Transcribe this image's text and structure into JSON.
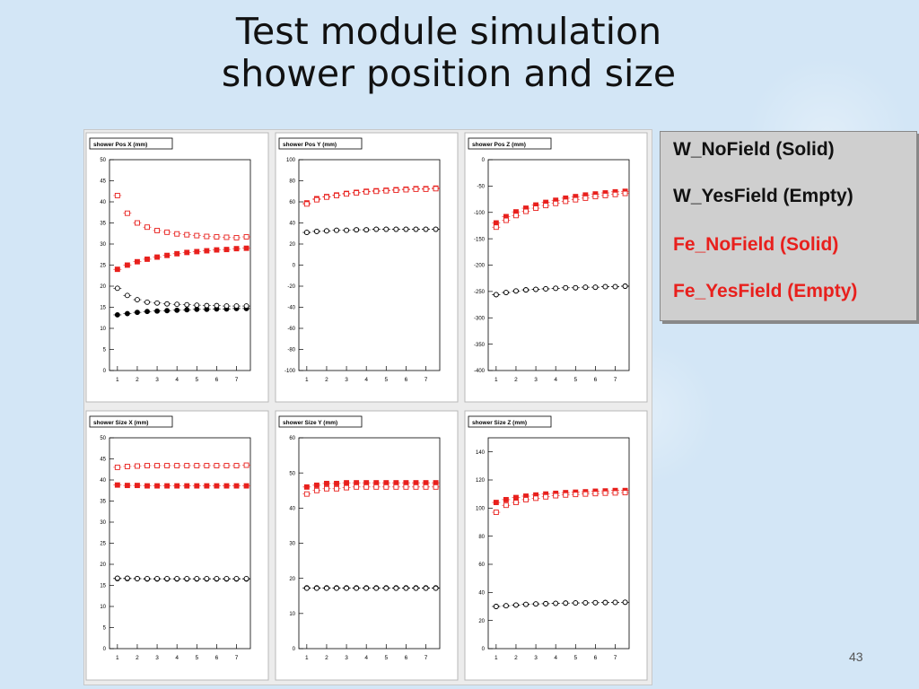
{
  "slide": {
    "title_line1": "Test module simulation",
    "title_line2": "shower position and size",
    "page_number": "43"
  },
  "legend": [
    {
      "label": "W_NoField (Solid)",
      "color": "#111111"
    },
    {
      "label": "W_YesField (Empty)",
      "color": "#111111"
    },
    {
      "label": "Fe_NoField (Solid)",
      "color": "#e8201d"
    },
    {
      "label": "Fe_YesField (Empty)",
      "color": "#e8201d"
    }
  ],
  "colors": {
    "black_series": "#000000",
    "red_series": "#e8201d"
  },
  "chart_data": [
    {
      "type": "scatter",
      "title": "shower Pos X (mm)",
      "x": [
        1,
        1.5,
        2,
        2.5,
        3,
        3.5,
        4,
        4.5,
        5,
        5.5,
        6,
        6.5,
        7,
        7.5
      ],
      "ylim": [
        0,
        50
      ],
      "yticks": [
        0,
        5,
        10,
        15,
        20,
        25,
        30,
        35,
        40,
        45,
        50
      ],
      "xticks": [
        1,
        2,
        3,
        4,
        5,
        6,
        7
      ],
      "series": [
        {
          "values": [
            13.2,
            13.5,
            13.8,
            14.0,
            14.1,
            14.2,
            14.3,
            14.4,
            14.5,
            14.5,
            14.6,
            14.6,
            14.7,
            14.7
          ]
        },
        {
          "values": [
            19.5,
            17.8,
            16.8,
            16.2,
            16.0,
            15.8,
            15.7,
            15.6,
            15.5,
            15.4,
            15.4,
            15.3,
            15.3,
            15.3
          ]
        },
        {
          "values": [
            24.0,
            25.0,
            25.8,
            26.4,
            26.9,
            27.3,
            27.7,
            28.0,
            28.2,
            28.4,
            28.6,
            28.7,
            28.9,
            29.0
          ]
        },
        {
          "values": [
            41.5,
            37.3,
            35.0,
            34.0,
            33.2,
            32.8,
            32.4,
            32.2,
            32.0,
            31.8,
            31.7,
            31.6,
            31.5,
            31.7
          ]
        }
      ]
    },
    {
      "type": "scatter",
      "title": "shower Pos Y (mm)",
      "x": [
        1,
        1.5,
        2,
        2.5,
        3,
        3.5,
        4,
        4.5,
        5,
        5.5,
        6,
        6.5,
        7,
        7.5
      ],
      "ylim": [
        -100,
        100
      ],
      "yticks": [
        -100,
        -80,
        -60,
        -40,
        -20,
        0,
        20,
        40,
        60,
        80,
        100
      ],
      "xticks": [
        1,
        2,
        3,
        4,
        5,
        6,
        7
      ],
      "series": [
        {
          "values": [
            31,
            32,
            32.5,
            33,
            33,
            33.5,
            33.5,
            34,
            34,
            34,
            34,
            34,
            34,
            34
          ]
        },
        {
          "values": [
            31,
            32,
            32.5,
            33,
            33,
            33.5,
            33.5,
            34,
            34,
            34,
            34,
            34,
            34,
            34
          ]
        },
        {
          "values": [
            59,
            63,
            65,
            66.5,
            68,
            69,
            70,
            70.5,
            71,
            71.5,
            72,
            72.5,
            72.5,
            73
          ]
        },
        {
          "values": [
            58,
            62,
            64.5,
            66,
            67.5,
            68.5,
            69.5,
            70,
            70.5,
            71,
            71.5,
            72,
            72,
            72.5
          ]
        }
      ]
    },
    {
      "type": "scatter",
      "title": "shower Pos Z (mm)",
      "x": [
        1,
        1.5,
        2,
        2.5,
        3,
        3.5,
        4,
        4.5,
        5,
        5.5,
        6,
        6.5,
        7,
        7.5
      ],
      "ylim": [
        -400,
        0
      ],
      "yticks": [
        -400,
        -350,
        -300,
        -250,
        -200,
        -150,
        -100,
        -50,
        0
      ],
      "xticks": [
        1,
        2,
        3,
        4,
        5,
        6,
        7
      ],
      "series": [
        {
          "values": [
            -256,
            -252,
            -249,
            -247,
            -246,
            -245,
            -244,
            -243,
            -243,
            -242,
            -242,
            -241,
            -241,
            -240
          ]
        },
        {
          "values": [
            -256,
            -252,
            -249,
            -247,
            -246,
            -245,
            -244,
            -243,
            -243,
            -242,
            -242,
            -241,
            -241,
            -240
          ]
        },
        {
          "values": [
            -120,
            -108,
            -99,
            -92,
            -86,
            -81,
            -77,
            -73,
            -70,
            -67,
            -65,
            -63,
            -61,
            -60
          ]
        },
        {
          "values": [
            -128,
            -115,
            -106,
            -98,
            -92,
            -87,
            -83,
            -79,
            -76,
            -73,
            -70,
            -68,
            -66,
            -64
          ]
        }
      ]
    },
    {
      "type": "scatter",
      "title": "shower Size X (mm)",
      "x": [
        1,
        1.5,
        2,
        2.5,
        3,
        3.5,
        4,
        4.5,
        5,
        5.5,
        6,
        6.5,
        7,
        7.5
      ],
      "ylim": [
        0,
        50
      ],
      "yticks": [
        0,
        5,
        10,
        15,
        20,
        25,
        30,
        35,
        40,
        45,
        50
      ],
      "xticks": [
        1,
        2,
        3,
        4,
        5,
        6,
        7
      ],
      "series": [
        {
          "values": [
            16.6,
            16.6,
            16.6,
            16.5,
            16.5,
            16.5,
            16.5,
            16.5,
            16.5,
            16.5,
            16.5,
            16.5,
            16.5,
            16.5
          ]
        },
        {
          "values": [
            16.7,
            16.7,
            16.6,
            16.6,
            16.6,
            16.6,
            16.6,
            16.6,
            16.6,
            16.6,
            16.6,
            16.6,
            16.6,
            16.6
          ]
        },
        {
          "values": [
            38.8,
            38.7,
            38.7,
            38.6,
            38.6,
            38.6,
            38.6,
            38.6,
            38.6,
            38.6,
            38.6,
            38.6,
            38.6,
            38.6
          ]
        },
        {
          "values": [
            43.0,
            43.2,
            43.3,
            43.4,
            43.4,
            43.4,
            43.4,
            43.4,
            43.4,
            43.4,
            43.4,
            43.4,
            43.4,
            43.5
          ]
        }
      ]
    },
    {
      "type": "scatter",
      "title": "shower Size Y (mm)",
      "x": [
        1,
        1.5,
        2,
        2.5,
        3,
        3.5,
        4,
        4.5,
        5,
        5.5,
        6,
        6.5,
        7,
        7.5
      ],
      "ylim": [
        0,
        60
      ],
      "yticks": [
        0,
        10,
        20,
        30,
        40,
        50,
        60
      ],
      "xticks": [
        1,
        2,
        3,
        4,
        5,
        6,
        7
      ],
      "series": [
        {
          "values": [
            17.3,
            17.3,
            17.3,
            17.3,
            17.3,
            17.3,
            17.3,
            17.3,
            17.3,
            17.3,
            17.3,
            17.3,
            17.3,
            17.3
          ]
        },
        {
          "values": [
            17.2,
            17.2,
            17.2,
            17.2,
            17.2,
            17.2,
            17.2,
            17.2,
            17.2,
            17.2,
            17.2,
            17.2,
            17.2,
            17.2
          ]
        },
        {
          "values": [
            46.0,
            46.5,
            47.0,
            47.0,
            47.2,
            47.2,
            47.2,
            47.2,
            47.2,
            47.2,
            47.2,
            47.2,
            47.2,
            47.2
          ]
        },
        {
          "values": [
            44.0,
            45.0,
            45.5,
            45.5,
            45.8,
            46.0,
            46.0,
            46.0,
            46.0,
            46.0,
            46.0,
            46.0,
            46.0,
            46.0
          ]
        }
      ]
    },
    {
      "type": "scatter",
      "title": "shower Size Z (mm)",
      "x": [
        1,
        1.5,
        2,
        2.5,
        3,
        3.5,
        4,
        4.5,
        5,
        5.5,
        6,
        6.5,
        7,
        7.5
      ],
      "ylim": [
        0,
        150
      ],
      "yticks": [
        0,
        20,
        40,
        60,
        80,
        100,
        120,
        140
      ],
      "xticks": [
        1,
        2,
        3,
        4,
        5,
        6,
        7
      ],
      "series": [
        {
          "values": [
            30,
            30.5,
            31,
            31.5,
            31.8,
            32,
            32.2,
            32.4,
            32.5,
            32.6,
            32.7,
            32.8,
            32.9,
            33
          ]
        },
        {
          "values": [
            30,
            30.5,
            31,
            31.5,
            31.8,
            32,
            32.2,
            32.4,
            32.5,
            32.6,
            32.7,
            32.8,
            32.9,
            33
          ]
        },
        {
          "values": [
            104,
            106,
            107.5,
            108.5,
            109.3,
            110,
            110.5,
            111,
            111.3,
            111.6,
            112,
            112.2,
            112.5,
            112.5
          ]
        },
        {
          "values": [
            97,
            102,
            104,
            106,
            107,
            108,
            108.8,
            109.3,
            109.7,
            110,
            110.3,
            110.6,
            110.8,
            111
          ]
        }
      ]
    }
  ]
}
